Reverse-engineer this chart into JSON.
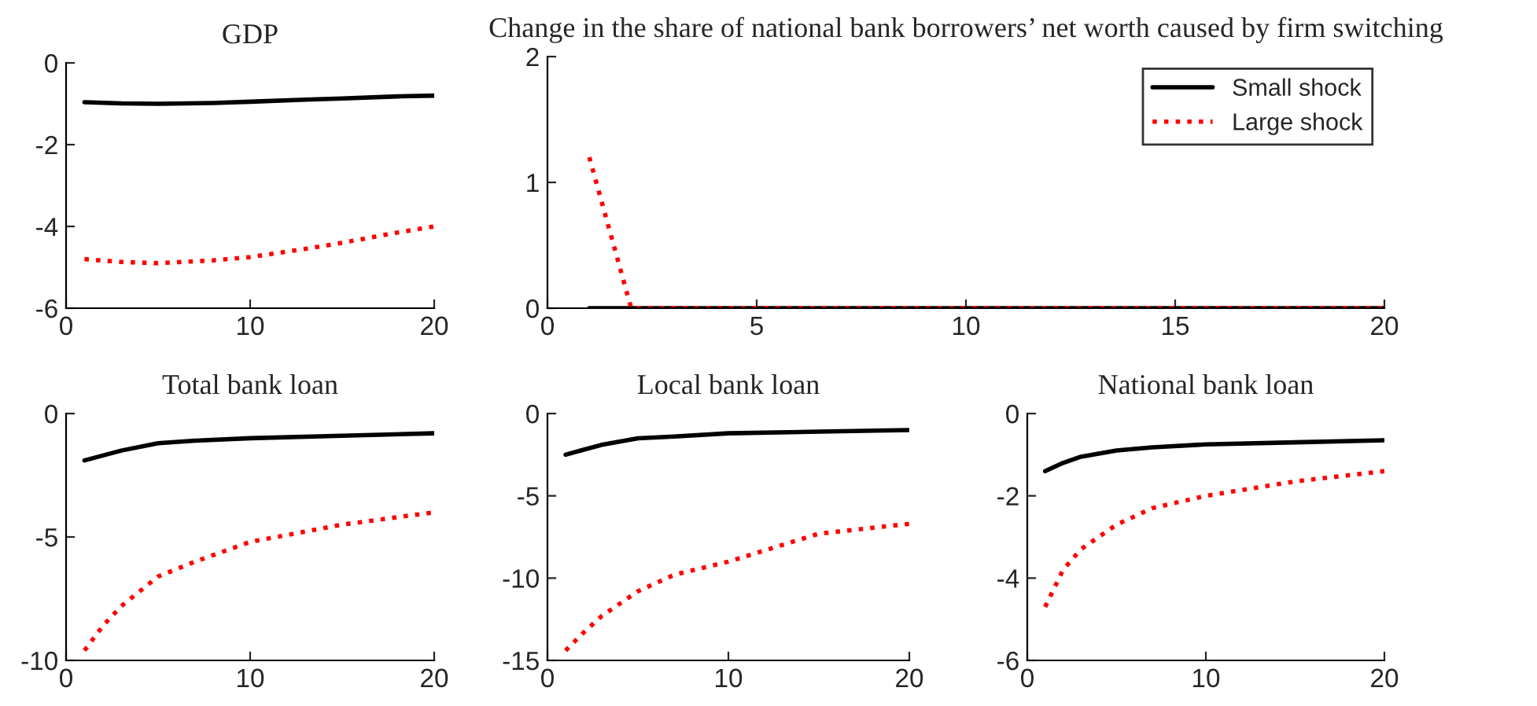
{
  "chart_data": [
    {
      "type": "line",
      "title": "GDP",
      "xlim": [
        0,
        20
      ],
      "xticks": [
        0,
        10,
        20
      ],
      "ylim": [
        -6,
        0
      ],
      "yticks": [
        -6,
        -4,
        -2,
        0
      ],
      "grid": false,
      "legend": false,
      "series": [
        {
          "color": "#000000",
          "line_style": "solid",
          "x": [
            1,
            3,
            5,
            8,
            10,
            13,
            15,
            18,
            20
          ],
          "values": [
            -0.96,
            -0.99,
            -1.0,
            -0.98,
            -0.95,
            -0.9,
            -0.87,
            -0.82,
            -0.8
          ]
        },
        {
          "color": "#ff0000",
          "line_style": "dotted",
          "x": [
            1,
            3,
            5,
            8,
            10,
            13,
            15,
            18,
            20
          ],
          "values": [
            -4.8,
            -4.87,
            -4.9,
            -4.83,
            -4.75,
            -4.55,
            -4.4,
            -4.15,
            -4.0
          ]
        }
      ]
    },
    {
      "type": "line",
      "title": "Change in the share of national bank borrowers’ net worth caused by firm switching",
      "xlim": [
        0,
        20
      ],
      "xticks": [
        0,
        5,
        10,
        15,
        20
      ],
      "ylim": [
        0,
        2
      ],
      "yticks": [
        0,
        1,
        2
      ],
      "grid": false,
      "legend": "top right",
      "series": [
        {
          "name": "Small shock",
          "color": "#000000",
          "line_style": "solid",
          "x": [
            1,
            2,
            5,
            10,
            15,
            20
          ],
          "values": [
            0,
            0,
            0,
            0,
            0,
            0
          ]
        },
        {
          "name": "Large shock",
          "color": "#ff0000",
          "line_style": "dotted",
          "x": [
            1,
            2,
            5,
            10,
            15,
            20
          ],
          "values": [
            1.2,
            0,
            0,
            0,
            0,
            0
          ]
        }
      ]
    },
    {
      "type": "line",
      "title": "Total bank loan",
      "xlim": [
        0,
        20
      ],
      "xticks": [
        0,
        10,
        20
      ],
      "ylim": [
        -10,
        0
      ],
      "yticks": [
        -10,
        -5,
        0
      ],
      "grid": false,
      "legend": false,
      "series": [
        {
          "color": "#000000",
          "line_style": "solid",
          "x": [
            1,
            2,
            3,
            5,
            7,
            10,
            15,
            20
          ],
          "values": [
            -1.9,
            -1.7,
            -1.5,
            -1.2,
            -1.1,
            -1.0,
            -0.9,
            -0.8
          ]
        },
        {
          "color": "#ff0000",
          "line_style": "dotted",
          "x": [
            1,
            2,
            3,
            5,
            7,
            10,
            15,
            20
          ],
          "values": [
            -9.6,
            -8.6,
            -7.8,
            -6.6,
            -6.0,
            -5.2,
            -4.5,
            -4.0
          ]
        }
      ]
    },
    {
      "type": "line",
      "title": "Local bank loan",
      "xlim": [
        0,
        20
      ],
      "xticks": [
        0,
        10,
        20
      ],
      "ylim": [
        -15,
        0
      ],
      "yticks": [
        -15,
        -10,
        -5,
        0
      ],
      "grid": false,
      "legend": false,
      "series": [
        {
          "color": "#000000",
          "line_style": "solid",
          "x": [
            1,
            2,
            3,
            5,
            7,
            10,
            15,
            20
          ],
          "values": [
            -2.5,
            -2.2,
            -1.9,
            -1.5,
            -1.4,
            -1.2,
            -1.1,
            -1.0
          ]
        },
        {
          "color": "#ff0000",
          "line_style": "dotted",
          "x": [
            1,
            2,
            3,
            5,
            7,
            10,
            15,
            20
          ],
          "values": [
            -14.4,
            -13.3,
            -12.3,
            -10.8,
            -9.8,
            -9.0,
            -7.3,
            -6.7
          ]
        }
      ]
    },
    {
      "type": "line",
      "title": "National bank loan",
      "xlim": [
        0,
        20
      ],
      "xticks": [
        0,
        10,
        20
      ],
      "ylim": [
        -6,
        0
      ],
      "yticks": [
        -6,
        -4,
        -2,
        0
      ],
      "grid": false,
      "legend": false,
      "series": [
        {
          "color": "#000000",
          "line_style": "solid",
          "x": [
            1,
            2,
            3,
            5,
            7,
            10,
            15,
            20
          ],
          "values": [
            -1.4,
            -1.2,
            -1.05,
            -0.9,
            -0.82,
            -0.75,
            -0.7,
            -0.65
          ]
        },
        {
          "color": "#ff0000",
          "line_style": "dotted",
          "x": [
            1,
            2,
            3,
            5,
            7,
            10,
            15,
            20
          ],
          "values": [
            -4.7,
            -3.8,
            -3.3,
            -2.7,
            -2.3,
            -2.0,
            -1.65,
            -1.4
          ]
        }
      ]
    }
  ]
}
